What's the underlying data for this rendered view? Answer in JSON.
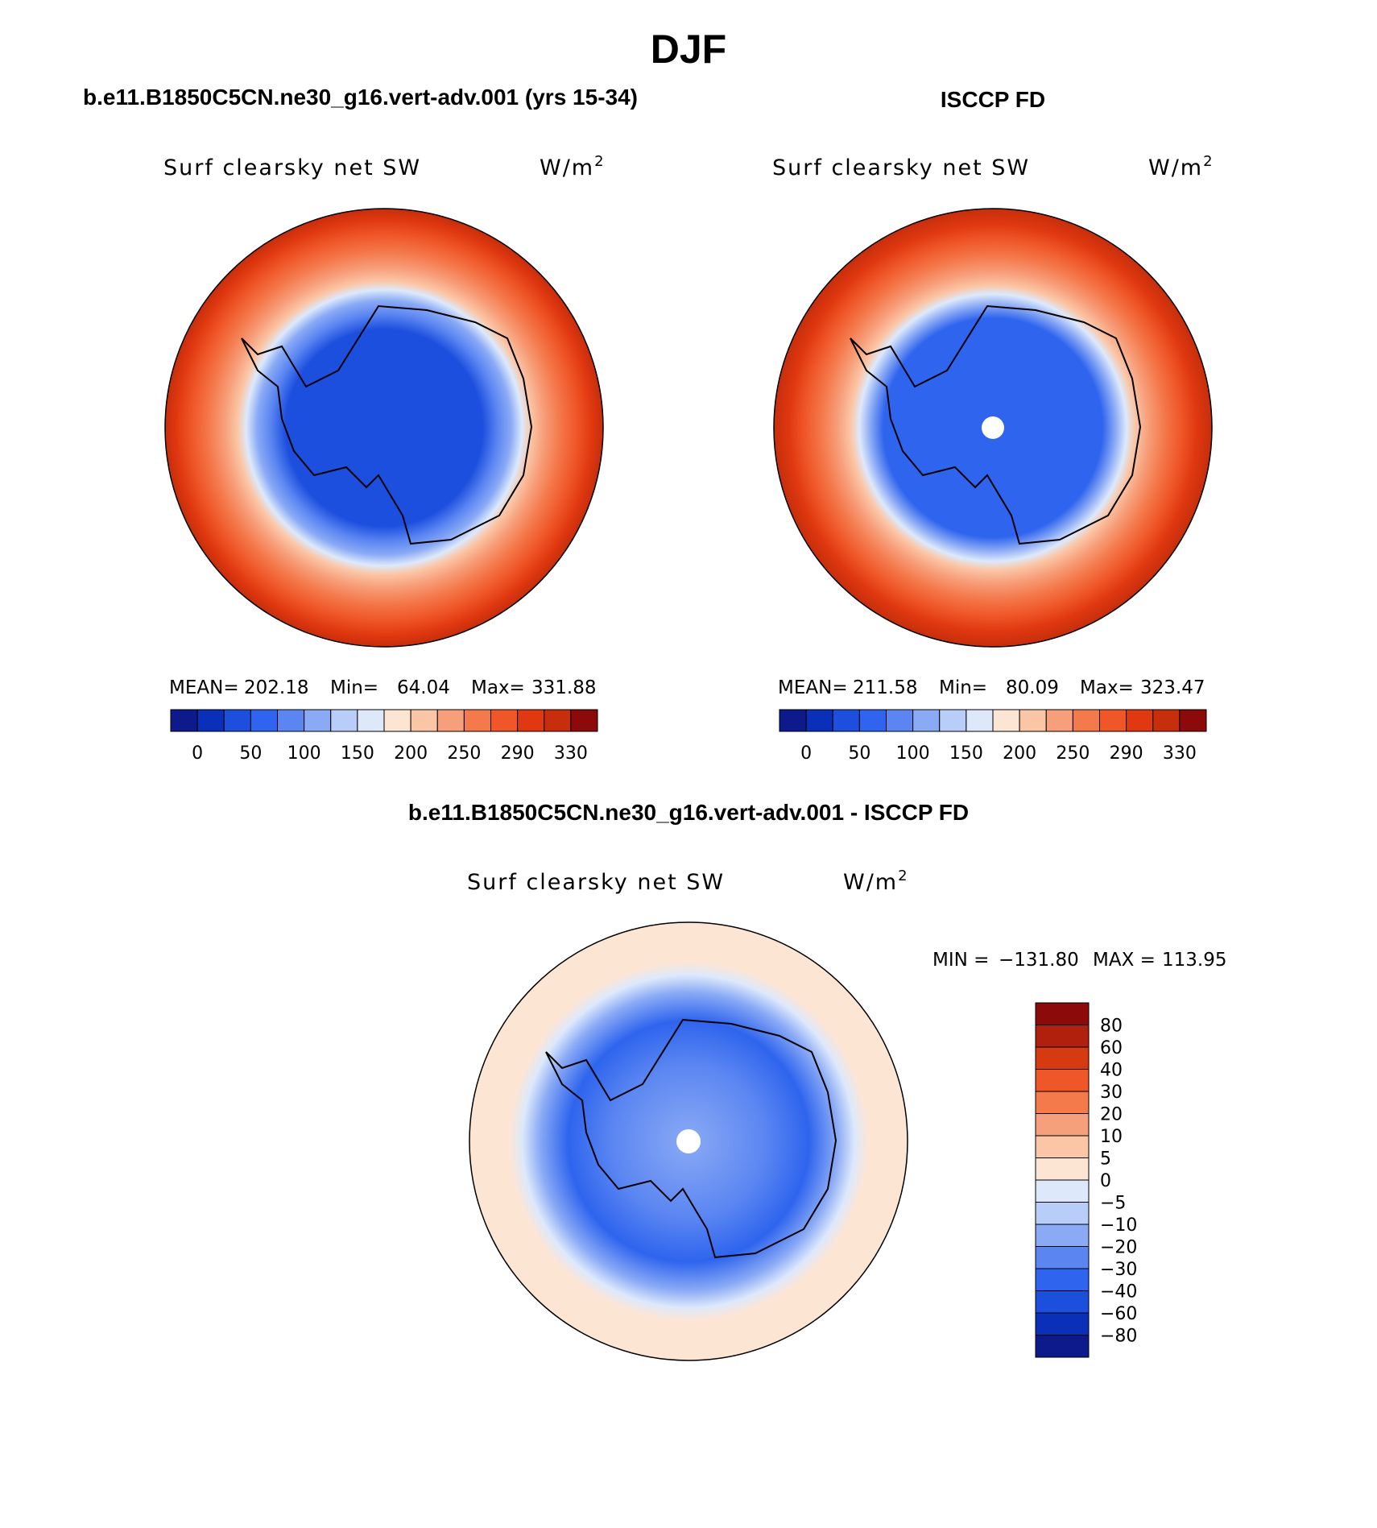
{
  "chart_data": {
    "type": "heatmap",
    "title": "DJF",
    "panels": [
      {
        "id": "model",
        "panel_title": "b.e11.B1850C5CN.ne30_g16.vert-adv.001 (yrs 15-34)",
        "variable": "Surf clearsky net SW",
        "units": "W/m",
        "units_sup": "2",
        "stats": {
          "mean_label": "MEAN=",
          "mean": "202.18",
          "min_label": "Min=",
          "min": "64.04",
          "max_label": "Max=",
          "max": "331.88"
        },
        "levels": [
          0,
          50,
          100,
          150,
          200,
          250,
          290,
          330
        ],
        "level_labels": [
          "0",
          "50",
          "100",
          "150",
          "200",
          "250",
          "290",
          "330"
        ],
        "projection": "south polar stereographic",
        "has_pole_hole": false
      },
      {
        "id": "obs",
        "panel_title": "ISCCP FD",
        "variable": "Surf clearsky net SW",
        "units": "W/m",
        "units_sup": "2",
        "stats": {
          "mean_label": "MEAN=",
          "mean": "211.58",
          "min_label": "Min=",
          "min": "80.09",
          "max_label": "Max=",
          "max": "323.47"
        },
        "levels": [
          0,
          50,
          100,
          150,
          200,
          250,
          290,
          330
        ],
        "level_labels": [
          "0",
          "50",
          "100",
          "150",
          "200",
          "250",
          "290",
          "330"
        ],
        "projection": "south polar stereographic",
        "has_pole_hole": true
      },
      {
        "id": "diff",
        "panel_title": "b.e11.B1850C5CN.ne30_g16.vert-adv.001 - ISCCP FD",
        "variable": "Surf clearsky net SW",
        "units": "W/m",
        "units_sup": "2",
        "stats": {
          "min_label": "MIN =",
          "min": "−131.80",
          "max_label": "MAX =",
          "max": "113.95"
        },
        "levels": [
          80,
          60,
          40,
          30,
          20,
          10,
          5,
          0,
          -5,
          -10,
          -20,
          -30,
          -40,
          -60,
          -80
        ],
        "level_labels": [
          "80",
          "60",
          "40",
          "30",
          "20",
          "10",
          "5",
          "0",
          "−5",
          "−10",
          "−20",
          "−30",
          "−40",
          "−60",
          "−80"
        ],
        "projection": "south polar stereographic",
        "has_pole_hole": true
      }
    ],
    "palette_absolute": [
      "#0c1a8c",
      "#0a2fb8",
      "#1d4fde",
      "#2e64ee",
      "#5b86f2",
      "#8aaaf5",
      "#b8cdf8",
      "#dde9fb",
      "#fde5d4",
      "#fbc6a6",
      "#f79e7a",
      "#f47a4c",
      "#ef5628",
      "#e03810",
      "#c62e0c",
      "#8c0a0a"
    ],
    "palette_difference": [
      "#8c0a0a",
      "#b0200c",
      "#d63a10",
      "#ef5628",
      "#f47a4c",
      "#f79e7a",
      "#fbc6a6",
      "#fde5d4",
      "#dde9fb",
      "#b8cdf8",
      "#8aaaf5",
      "#5b86f2",
      "#2e64ee",
      "#1d4fde",
      "#0a2fb8",
      "#0c1a8c"
    ]
  }
}
